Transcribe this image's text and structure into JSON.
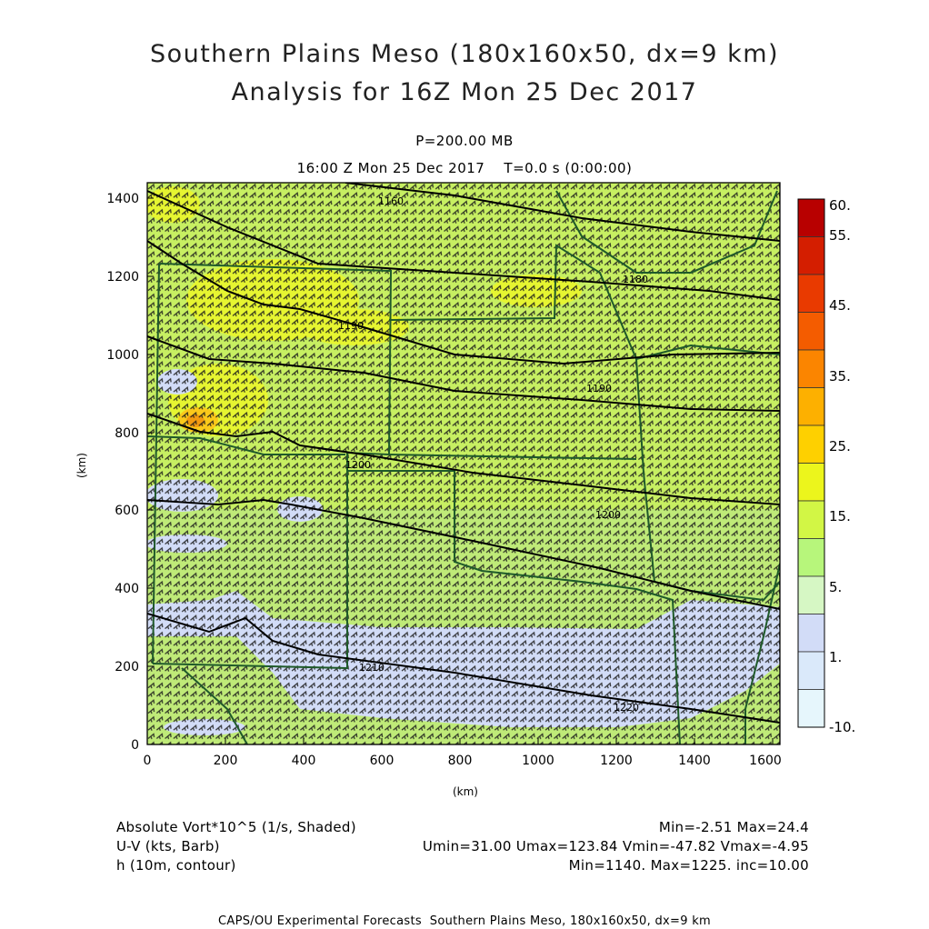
{
  "header": {
    "title_line1": "Southern Plains Meso (180x160x50, dx=9 km)",
    "title_line2": "Analysis for 16Z Mon 25 Dec 2017",
    "level": "P=200.00 MB",
    "valid_time": "16:00 Z Mon 25 Dec 2017    T=0.0 s (0:00:00)"
  },
  "axes": {
    "x_label": "(km)",
    "y_label": "(km)",
    "x_ticks": [
      "0",
      "200",
      "400",
      "600",
      "800",
      "1000",
      "1200",
      "1400",
      "1600"
    ],
    "y_ticks": [
      "0",
      "200",
      "400",
      "600",
      "800",
      "1000",
      "1200",
      "1400"
    ]
  },
  "colorbar": {
    "labels": [
      "60.",
      "55.",
      "45.",
      "35.",
      "25.",
      "15.",
      "5.",
      "1.",
      "-10."
    ],
    "colors": [
      "#b80000",
      "#d41e00",
      "#e93a00",
      "#f45c00",
      "#fb8500",
      "#fdb000",
      "#fed000",
      "#ecf51c",
      "#d2f645",
      "#b7f67b",
      "#d6f7c4",
      "#d2dcf7",
      "#dae9fa",
      "#e6f6fc"
    ]
  },
  "contours": {
    "labels": [
      "1160",
      "1180",
      "1190",
      "1190",
      "1200",
      "1200",
      "1210",
      "1220",
      "1220"
    ]
  },
  "legend": {
    "field1_name": "Absolute Vort*10^5 (1/s, Shaded)",
    "field1_stats": "Min=-2.51 Max=24.4",
    "field2_name": "U-V (kts, Barb)",
    "field2_stats": "Umin=31.00 Umax=123.84 Vmin=-47.82 Vmax=-4.95",
    "field3_name": "h (10m, contour)",
    "field3_stats": "Min=1140. Max=1225. inc=10.00"
  },
  "footer": "CAPS/OU Experimental Forecasts  Southern Plains Meso, 180x160x50, dx=9 km",
  "map_data": {
    "domain_km": {
      "x": [
        0,
        1620
      ],
      "y": [
        0,
        1420
      ]
    },
    "field_range": [
      -2.51,
      24.4
    ],
    "barb_spacing_km": 9
  }
}
